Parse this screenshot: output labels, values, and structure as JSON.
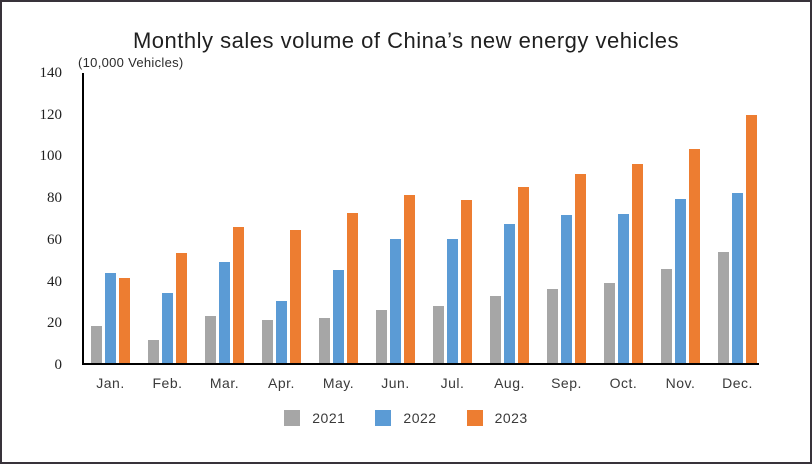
{
  "chart_data": {
    "type": "bar",
    "title": "Monthly sales volume of China’s new energy vehicles",
    "unit_label": "(10,000 Vehicles)",
    "categories": [
      "Jan.",
      "Feb.",
      "Mar.",
      "Apr.",
      "May.",
      "Jun.",
      "Jul.",
      "Aug.",
      "Sep.",
      "Oct.",
      "Nov.",
      "Dec."
    ],
    "series": [
      {
        "name": "2021",
        "color": "#A6A6A6",
        "values": [
          17.9,
          11.0,
          22.6,
          20.6,
          21.7,
          25.6,
          27.1,
          32.1,
          35.7,
          38.3,
          45.0,
          53.1
        ]
      },
      {
        "name": "2022",
        "color": "#5B9BD5",
        "values": [
          43.1,
          33.4,
          48.4,
          29.9,
          44.7,
          59.6,
          59.3,
          66.6,
          70.8,
          71.4,
          78.6,
          81.4
        ]
      },
      {
        "name": "2023",
        "color": "#ED7D31",
        "values": [
          40.8,
          52.5,
          65.3,
          63.6,
          71.7,
          80.6,
          78.0,
          84.6,
          90.4,
          95.6,
          102.6,
          119.1
        ]
      }
    ],
    "ylim": [
      0,
      140
    ],
    "yticks": [
      0,
      20,
      40,
      60,
      80,
      100,
      120,
      140
    ],
    "grid": false,
    "legend_position": "bottom",
    "axis_color": "#000000"
  }
}
